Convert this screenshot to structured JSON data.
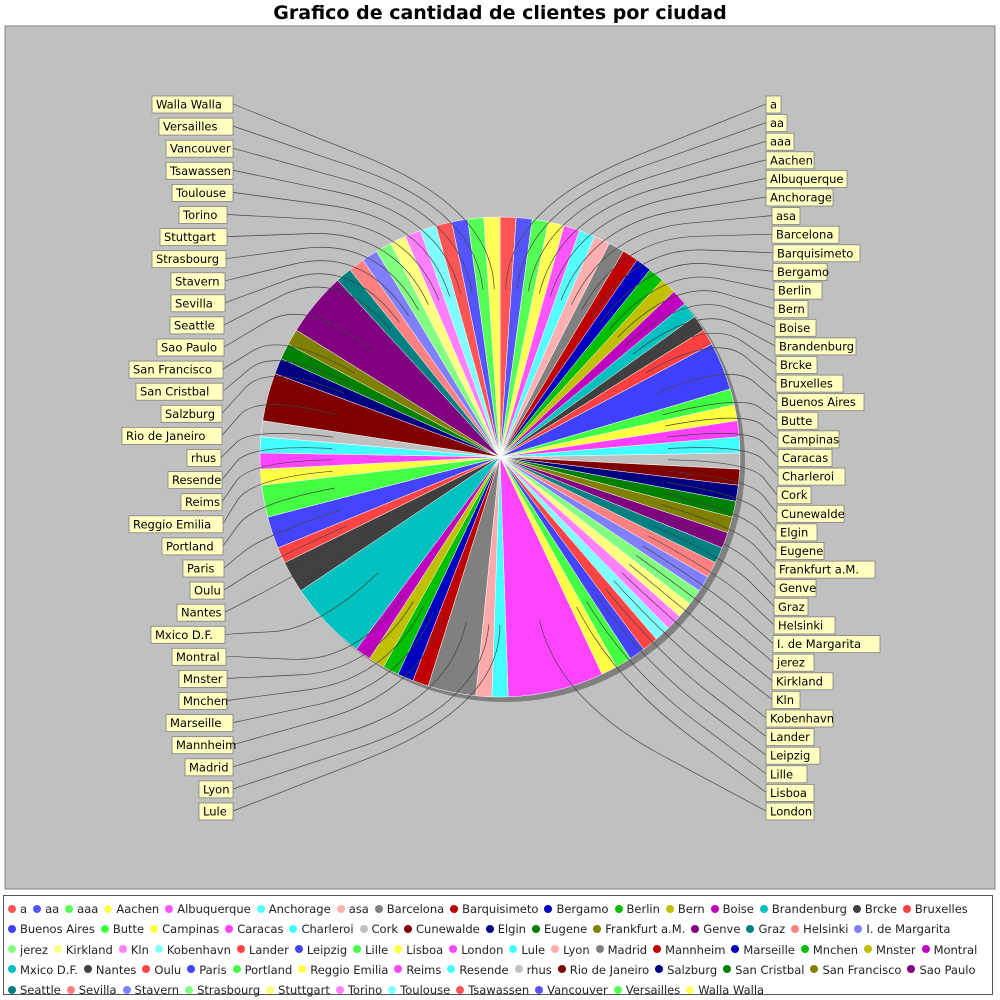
{
  "chart_data": {
    "type": "pie",
    "title": "Grafico de cantidad de clientes por ciudad",
    "categories": [
      "a",
      "aa",
      "aaa",
      "Aachen",
      "Albuquerque",
      "Anchorage",
      "asa",
      "Barcelona",
      "Barquisimeto",
      "Bergamo",
      "Berlin",
      "Bern",
      "Boise",
      "Brandenburg",
      "Brcke",
      "Bruxelles",
      "Buenos Aires",
      "Butte",
      "Campinas",
      "Caracas",
      "Charleroi",
      "Cork",
      "Cunewalde",
      "Elgin",
      "Eugene",
      "Frankfurt a.M.",
      "Genve",
      "Graz",
      "Helsinki",
      "I. de Margarita",
      "jerez",
      "Kirkland",
      "Kln",
      "Kobenhavn",
      "Lander",
      "Leipzig",
      "Lille",
      "Lisboa",
      "London",
      "Lule",
      "Lyon",
      "Madrid",
      "Mannheim",
      "Marseille",
      "Mnchen",
      "Mnster",
      "Montral",
      "Mxico D.F.",
      "Nantes",
      "Oulu",
      "Paris",
      "Portland",
      "Reggio Emilia",
      "Reims",
      "Resende",
      "rhus",
      "Rio de Janeiro",
      "Salzburg",
      "San Cristbal",
      "San Francisco",
      "Sao Paulo",
      "Seattle",
      "Sevilla",
      "Stavern",
      "Strasbourg",
      "Stuttgart",
      "Torino",
      "Toulouse",
      "Tsawassen",
      "Vancouver",
      "Versailles",
      "Walla Walla"
    ],
    "values": [
      1,
      1,
      1,
      1,
      1,
      1,
      1,
      1,
      1,
      1,
      1,
      1,
      1,
      1,
      1,
      1,
      3,
      1,
      1,
      1,
      1,
      1,
      1,
      1,
      1,
      1,
      1,
      1,
      1,
      1,
      1,
      1,
      1,
      1,
      1,
      1,
      1,
      1,
      6,
      1,
      1,
      3,
      1,
      1,
      1,
      1,
      1,
      5,
      2,
      1,
      2,
      2,
      1,
      1,
      1,
      1,
      3,
      1,
      1,
      1,
      4,
      1,
      1,
      1,
      1,
      1,
      1,
      1,
      1,
      1,
      1,
      1
    ],
    "colors": [
      "#ff5555",
      "#5555ff",
      "#55ff55",
      "#ffff55",
      "#ff55ff",
      "#55ffff",
      "#ffafaf",
      "#808080",
      "#c00000",
      "#0000c0",
      "#00c000",
      "#c0c000",
      "#c000c0",
      "#00c0c0",
      "#404040",
      "#ff4040",
      "#4040ff",
      "#40ff40",
      "#ffff40",
      "#ff40ff",
      "#40ffff",
      "#c0c0c0",
      "#800000",
      "#000080",
      "#008000",
      "#808000",
      "#800080",
      "#008080",
      "#ff8080",
      "#8080ff",
      "#80ff80",
      "#ffff80",
      "#ff80ff",
      "#80ffff",
      "#ff4444",
      "#4444ff",
      "#44ff44",
      "#ffff44",
      "#ff44ff",
      "#44ffff",
      "#ffaaaa",
      "#808080",
      "#c00000",
      "#0000c0",
      "#00c000",
      "#c0c000",
      "#c000c0",
      "#00c0c0",
      "#404040",
      "#ff4444",
      "#4444ff",
      "#44ff44",
      "#ffff44",
      "#ff44ff",
      "#44ffff",
      "#c0c0c0",
      "#800000",
      "#000080",
      "#008000",
      "#808000",
      "#800080",
      "#008080",
      "#ff8080",
      "#8080ff",
      "#80ff80",
      "#ffff80",
      "#ff80ff",
      "#80ffff",
      "#ff5555",
      "#5555ff",
      "#55ff55",
      "#ffff55"
    ],
    "legend": "bottom"
  }
}
